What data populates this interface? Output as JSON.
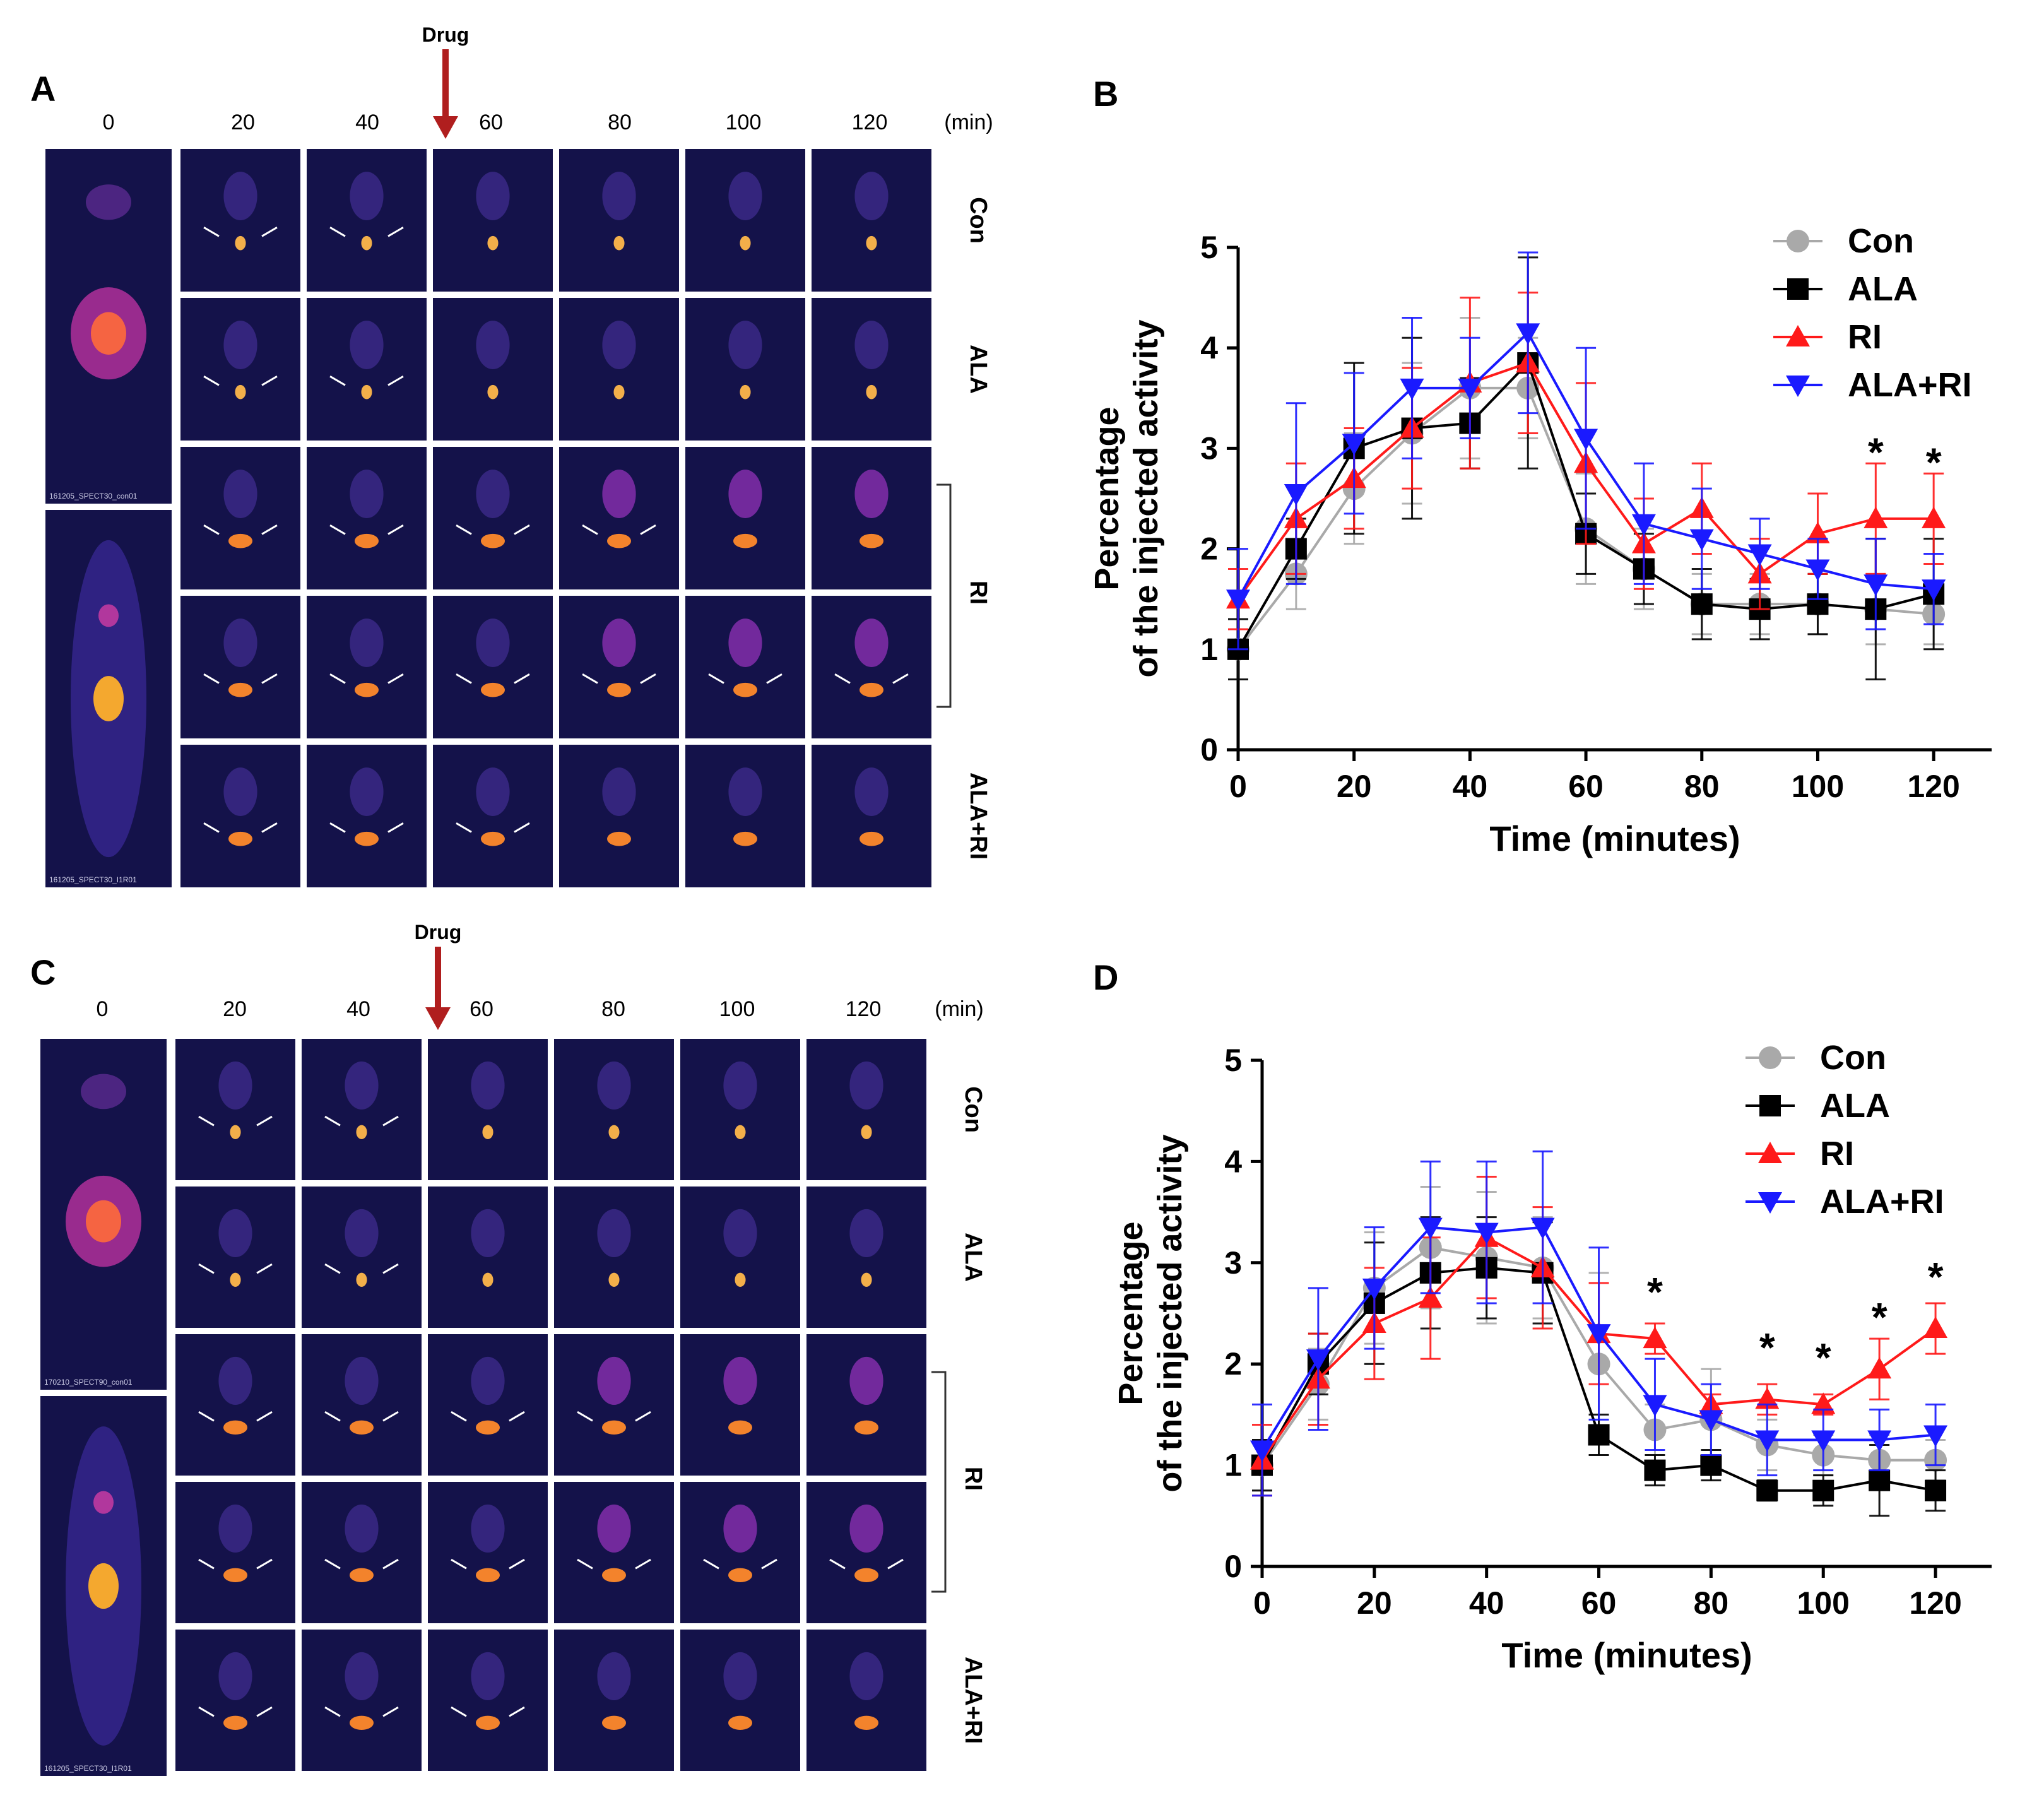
{
  "panels": {
    "A": {
      "letter": "A",
      "drug_label": "Drug",
      "time_labels": [
        "0",
        "20",
        "40",
        "60",
        "80",
        "100",
        "120"
      ],
      "unit_label": "(min)",
      "row_labels": [
        "Con",
        "ALA",
        "RI",
        "ALA+RI"
      ],
      "caption_top": "161205_SPECT30_con01",
      "caption_bottom": "161205_SPECT30_I1R01"
    },
    "C": {
      "letter": "C",
      "drug_label": "Drug",
      "time_labels": [
        "0",
        "20",
        "40",
        "60",
        "80",
        "100",
        "120"
      ],
      "unit_label": "(min)",
      "row_labels": [
        "Con",
        "ALA",
        "RI",
        "ALA+RI"
      ],
      "caption_top": "170210_SPECT90_con01",
      "caption_bottom": "161205_SPECT30_I1R01"
    }
  },
  "colors": {
    "Con": "#a9a9a9",
    "ALA": "#000000",
    "RI": "#ff1a1a",
    "ALA+RI": "#1a1aff",
    "drug_arrow": "#b01e1e",
    "scan_background": "#14124a"
  },
  "chart_data": [
    {
      "panel": "B",
      "type": "line",
      "title": "",
      "xlabel": "Time (minutes)",
      "ylabel_lines": [
        "Percentage",
        "of the injected activity"
      ],
      "xlim": [
        0,
        130
      ],
      "ylim": [
        0,
        5
      ],
      "xticks": [
        0,
        20,
        40,
        60,
        80,
        100,
        120
      ],
      "yticks": [
        0,
        1,
        2,
        3,
        4,
        5
      ],
      "x": [
        0,
        10,
        20,
        30,
        40,
        50,
        60,
        70,
        80,
        90,
        100,
        110,
        120
      ],
      "legend_position": "top-right",
      "series": [
        {
          "name": "Con",
          "marker": "circle",
          "values": [
            1.0,
            1.75,
            2.6,
            3.15,
            3.6,
            3.6,
            2.2,
            1.8,
            1.45,
            1.45,
            1.45,
            1.4,
            1.35
          ],
          "errors": [
            0.3,
            0.35,
            0.55,
            0.7,
            0.7,
            0.5,
            0.55,
            0.4,
            0.3,
            0.3,
            0.3,
            0.35,
            0.3
          ]
        },
        {
          "name": "ALA",
          "marker": "square",
          "values": [
            1.0,
            2.0,
            3.0,
            3.2,
            3.25,
            3.85,
            2.15,
            1.8,
            1.45,
            1.4,
            1.45,
            1.4,
            1.55
          ],
          "errors": [
            0.3,
            0.3,
            0.85,
            0.9,
            0.45,
            1.05,
            0.4,
            0.35,
            0.35,
            0.3,
            0.3,
            0.7,
            0.55
          ]
        },
        {
          "name": "RI",
          "marker": "triangle-up",
          "values": [
            1.5,
            2.3,
            2.7,
            3.2,
            3.65,
            3.85,
            2.85,
            2.05,
            2.4,
            1.75,
            2.15,
            2.3,
            2.3
          ],
          "errors": [
            0.3,
            0.55,
            0.5,
            0.6,
            0.85,
            0.7,
            0.8,
            0.45,
            0.45,
            0.35,
            0.4,
            0.55,
            0.45
          ]
        },
        {
          "name": "ALA+RI",
          "marker": "triangle-down",
          "values": [
            1.5,
            2.55,
            3.05,
            3.6,
            3.6,
            4.15,
            3.1,
            2.25,
            2.1,
            1.95,
            1.8,
            1.65,
            1.6
          ],
          "errors": [
            0.5,
            0.9,
            0.7,
            0.7,
            0.5,
            0.8,
            0.9,
            0.6,
            0.5,
            0.35,
            0.3,
            0.45,
            0.35
          ]
        }
      ],
      "annotations": [
        {
          "text": "*",
          "x": 110,
          "y": 3.0
        },
        {
          "text": "*",
          "x": 120,
          "y": 2.9
        }
      ]
    },
    {
      "panel": "D",
      "type": "line",
      "title": "",
      "xlabel": "Time (minutes)",
      "ylabel_lines": [
        "Percentage",
        "of the injected activity"
      ],
      "xlim": [
        0,
        130
      ],
      "ylim": [
        0,
        5
      ],
      "xticks": [
        0,
        20,
        40,
        60,
        80,
        100,
        120
      ],
      "yticks": [
        0,
        1,
        2,
        3,
        4,
        5
      ],
      "x": [
        0,
        10,
        20,
        30,
        40,
        50,
        60,
        70,
        80,
        90,
        100,
        110,
        120
      ],
      "legend_position": "top-right",
      "series": [
        {
          "name": "Con",
          "marker": "circle",
          "values": [
            1.0,
            1.8,
            2.75,
            3.15,
            3.05,
            2.95,
            2.0,
            1.35,
            1.45,
            1.2,
            1.1,
            1.05,
            1.05
          ],
          "errors": [
            0.25,
            0.35,
            0.55,
            0.6,
            0.65,
            0.5,
            0.9,
            0.25,
            0.5,
            0.25,
            0.2,
            0.25,
            0.2
          ]
        },
        {
          "name": "ALA",
          "marker": "square",
          "values": [
            1.0,
            2.0,
            2.6,
            2.9,
            2.95,
            2.9,
            1.3,
            0.95,
            1.0,
            0.75,
            0.75,
            0.85,
            0.75
          ],
          "errors": [
            0.25,
            0.3,
            0.6,
            0.55,
            0.5,
            0.5,
            0.2,
            0.15,
            0.15,
            0.1,
            0.15,
            0.35,
            0.2
          ]
        },
        {
          "name": "RI",
          "marker": "triangle-up",
          "values": [
            1.05,
            1.85,
            2.4,
            2.65,
            3.25,
            2.95,
            2.3,
            2.25,
            1.6,
            1.65,
            1.6,
            1.95,
            2.35
          ],
          "errors": [
            0.35,
            0.45,
            0.55,
            0.6,
            0.6,
            0.6,
            0.5,
            0.15,
            0.1,
            0.15,
            0.1,
            0.3,
            0.25
          ]
        },
        {
          "name": "ALA+RI",
          "marker": "triangle-down",
          "values": [
            1.15,
            2.05,
            2.75,
            3.35,
            3.3,
            3.35,
            2.3,
            1.6,
            1.45,
            1.25,
            1.25,
            1.25,
            1.3
          ],
          "errors": [
            0.45,
            0.7,
            0.6,
            0.65,
            0.7,
            0.75,
            0.85,
            0.45,
            0.35,
            0.35,
            0.3,
            0.3,
            0.3
          ]
        }
      ],
      "annotations": [
        {
          "text": "*",
          "x": 70,
          "y": 2.75
        },
        {
          "text": "*",
          "x": 90,
          "y": 2.2
        },
        {
          "text": "*",
          "x": 100,
          "y": 2.1
        },
        {
          "text": "*",
          "x": 110,
          "y": 2.5
        },
        {
          "text": "*",
          "x": 120,
          "y": 2.9
        }
      ]
    }
  ]
}
